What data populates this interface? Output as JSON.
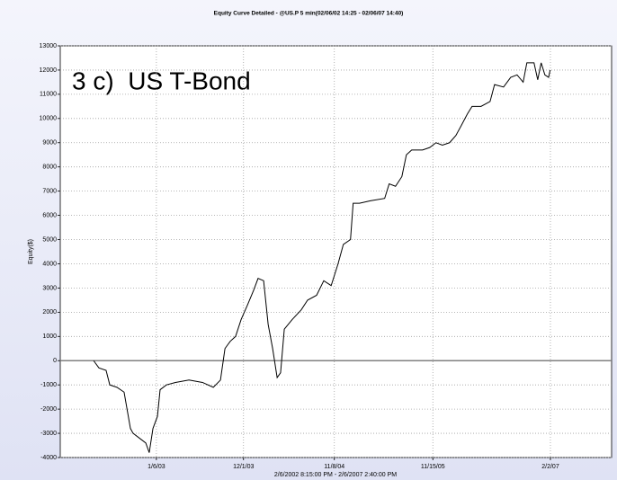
{
  "chart_data": {
    "type": "line",
    "title": "Equity Curve Detailed - @US.P 5 min(02/06/02 14:25 - 02/06/07 14:40)",
    "annotation": "3 c)  US T-Bond",
    "y_label": "Equity($)",
    "x_label": "2/6/2002 8:15:00 PM - 2/6/2007 2:40:00 PM",
    "x": [
      "2002-05-14",
      "2002-06-03",
      "2002-06-30",
      "2002-07-14",
      "2002-08-10",
      "2002-09-06",
      "2002-09-30",
      "2002-10-10",
      "2002-11-03",
      "2002-11-27",
      "2002-12-10",
      "2002-12-24",
      "2003-01-10",
      "2003-01-20",
      "2003-02-13",
      "2003-03-19",
      "2003-05-09",
      "2003-06-29",
      "2003-08-09",
      "2003-09-05",
      "2003-09-22",
      "2003-10-12",
      "2003-11-01",
      "2003-11-22",
      "2003-12-16",
      "2004-01-08",
      "2004-01-25",
      "2004-02-15",
      "2004-03-03",
      "2004-03-20",
      "2004-04-06",
      "2004-04-19",
      "2004-05-03",
      "2004-06-02",
      "2004-07-06",
      "2004-07-30",
      "2004-09-02",
      "2004-09-29",
      "2004-10-27",
      "2004-11-22",
      "2004-12-12",
      "2005-01-08",
      "2005-01-18",
      "2005-02-11",
      "2005-03-24",
      "2005-05-17",
      "2005-06-03",
      "2005-06-27",
      "2005-07-21",
      "2005-08-07",
      "2005-08-27",
      "2005-10-07",
      "2005-11-03",
      "2005-11-27",
      "2005-12-21",
      "2006-01-17",
      "2006-02-10",
      "2006-03-02",
      "2006-03-26",
      "2006-04-12",
      "2006-05-16",
      "2006-06-19",
      "2006-07-06",
      "2006-08-09",
      "2006-09-05",
      "2006-09-29",
      "2006-10-22",
      "2006-11-05",
      "2006-12-02",
      "2006-12-16",
      "2006-12-29",
      "2007-01-12",
      "2007-01-26",
      "2007-02-01"
    ],
    "series": [
      {
        "name": "Equity",
        "color": "#000000",
        "values": [
          0,
          -300,
          -400,
          -1000,
          -1100,
          -1300,
          -2800,
          -3000,
          -3200,
          -3400,
          -3800,
          -2800,
          -2300,
          -1200,
          -1000,
          -900,
          -800,
          -900,
          -1100,
          -800,
          500,
          800,
          1000,
          1700,
          2300,
          2900,
          3400,
          3300,
          1500,
          500,
          -700,
          -500,
          1300,
          1700,
          2100,
          2500,
          2700,
          3300,
          3100,
          4000,
          4800,
          5000,
          6500,
          6500,
          6600,
          6700,
          7300,
          7200,
          7600,
          8500,
          8700,
          8700,
          8800,
          9000,
          8900,
          9000,
          9300,
          9700,
          10200,
          10500,
          10500,
          10700,
          11400,
          11300,
          11700,
          11800,
          11500,
          12300,
          12300,
          11600,
          12300,
          11800,
          11700,
          12000
        ]
      }
    ],
    "xlim": [
      "2002-01-08",
      "2007-09-21"
    ],
    "xticks": [
      {
        "value": "2003-01-06",
        "label": "1/6/03"
      },
      {
        "value": "2003-12-01",
        "label": "12/1/03"
      },
      {
        "value": "2004-11-08",
        "label": "11/8/04"
      },
      {
        "value": "2005-11-15",
        "label": "11/15/05"
      },
      {
        "value": "2007-02-02",
        "label": "2/2/07"
      }
    ],
    "ylim": [
      -4000,
      13000
    ],
    "yticks": [
      -4000,
      -3000,
      -2000,
      -1000,
      0,
      1000,
      2000,
      3000,
      4000,
      5000,
      6000,
      7000,
      8000,
      9000,
      10000,
      11000,
      12000,
      13000
    ],
    "grid": true,
    "zero_line": true
  }
}
